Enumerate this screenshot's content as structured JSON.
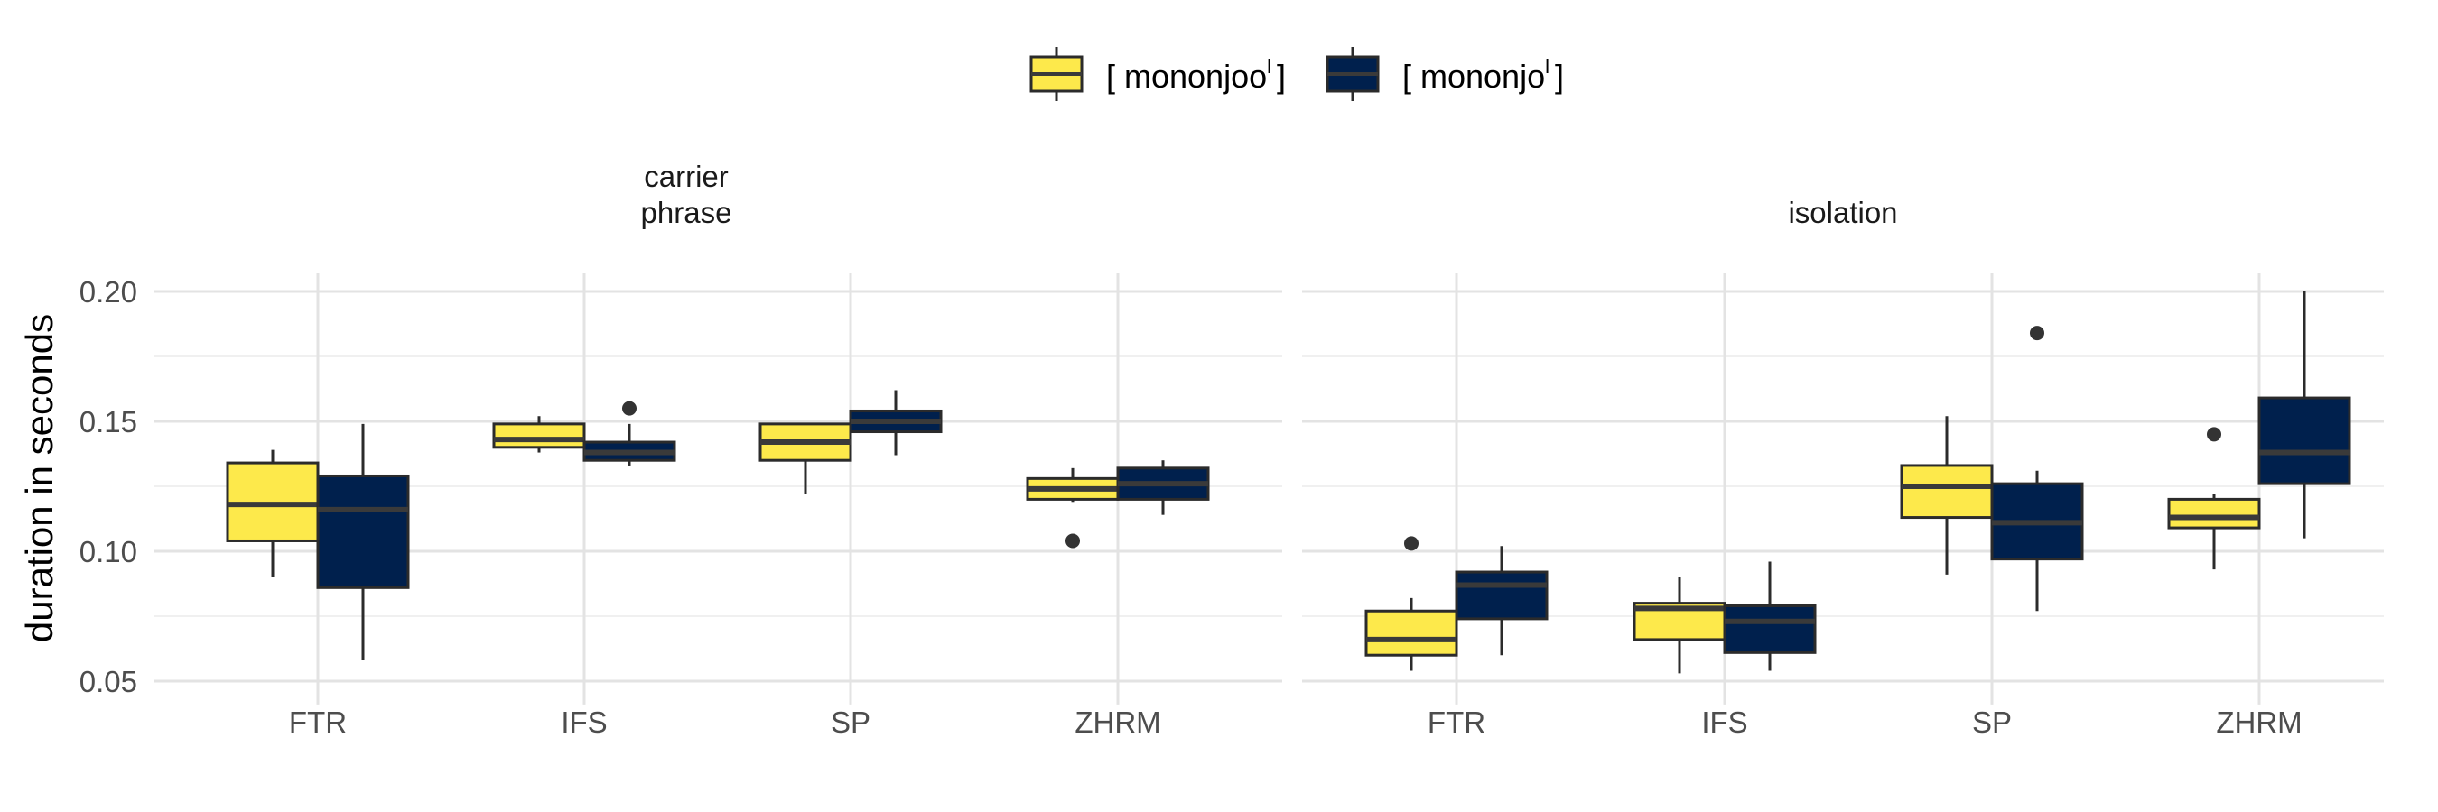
{
  "chart_data": {
    "type": "box",
    "facet_strip_labels": [
      "carrier\nphrase",
      "isolation"
    ],
    "ylabel": "duration in seconds",
    "ylim": [
      0.041,
      0.2
    ],
    "yticks": [
      0.05,
      0.1,
      0.15,
      0.2
    ],
    "ytick_labels": [
      "0.05",
      "0.10",
      "0.15",
      "0.20"
    ],
    "categories": [
      "FTR",
      "IFS",
      "SP",
      "ZHRM"
    ],
    "grid": true,
    "legend_position": "top",
    "series": [
      {
        "name": "[ mononjooˡ ]",
        "legend_base": "[ mononjoo",
        "legend_sup": "l",
        "legend_close": "]",
        "color": "#FDE94B"
      },
      {
        "name": "[ mononjoˡ ]",
        "legend_base": "[ mononjo",
        "legend_sup": "l",
        "legend_close": "]",
        "color": "#00204D"
      }
    ],
    "facets": [
      {
        "name": "carrier phrase",
        "boxes": {
          "FTR": [
            {
              "whisker_low": 0.09,
              "q1": 0.104,
              "median": 0.118,
              "q3": 0.134,
              "whisker_high": 0.139,
              "outliers": []
            },
            {
              "whisker_low": 0.058,
              "q1": 0.086,
              "median": 0.116,
              "q3": 0.129,
              "whisker_high": 0.149,
              "outliers": []
            }
          ],
          "IFS": [
            {
              "whisker_low": 0.138,
              "q1": 0.14,
              "median": 0.143,
              "q3": 0.149,
              "whisker_high": 0.152,
              "outliers": []
            },
            {
              "whisker_low": 0.133,
              "q1": 0.135,
              "median": 0.138,
              "q3": 0.142,
              "whisker_high": 0.149,
              "outliers": [
                0.155
              ]
            }
          ],
          "SP": [
            {
              "whisker_low": 0.122,
              "q1": 0.135,
              "median": 0.142,
              "q3": 0.149,
              "whisker_high": 0.149,
              "outliers": []
            },
            {
              "whisker_low": 0.137,
              "q1": 0.146,
              "median": 0.15,
              "q3": 0.154,
              "whisker_high": 0.162,
              "outliers": []
            }
          ],
          "ZHRM": [
            {
              "whisker_low": 0.119,
              "q1": 0.12,
              "median": 0.124,
              "q3": 0.128,
              "whisker_high": 0.132,
              "outliers": [
                0.104
              ]
            },
            {
              "whisker_low": 0.114,
              "q1": 0.12,
              "median": 0.126,
              "q3": 0.132,
              "whisker_high": 0.135,
              "outliers": []
            }
          ]
        }
      },
      {
        "name": "isolation",
        "boxes": {
          "FTR": [
            {
              "whisker_low": 0.054,
              "q1": 0.06,
              "median": 0.066,
              "q3": 0.077,
              "whisker_high": 0.082,
              "outliers": [
                0.103
              ]
            },
            {
              "whisker_low": 0.06,
              "q1": 0.074,
              "median": 0.087,
              "q3": 0.092,
              "whisker_high": 0.102,
              "outliers": []
            }
          ],
          "IFS": [
            {
              "whisker_low": 0.053,
              "q1": 0.066,
              "median": 0.078,
              "q3": 0.08,
              "whisker_high": 0.09,
              "outliers": []
            },
            {
              "whisker_low": 0.054,
              "q1": 0.061,
              "median": 0.073,
              "q3": 0.079,
              "whisker_high": 0.096,
              "outliers": []
            }
          ],
          "SP": [
            {
              "whisker_low": 0.091,
              "q1": 0.113,
              "median": 0.125,
              "q3": 0.133,
              "whisker_high": 0.152,
              "outliers": []
            },
            {
              "whisker_low": 0.077,
              "q1": 0.097,
              "median": 0.111,
              "q3": 0.126,
              "whisker_high": 0.131,
              "outliers": [
                0.184
              ]
            }
          ],
          "ZHRM": [
            {
              "whisker_low": 0.093,
              "q1": 0.109,
              "median": 0.113,
              "q3": 0.12,
              "whisker_high": 0.122,
              "outliers": [
                0.145
              ]
            },
            {
              "whisker_low": 0.105,
              "q1": 0.126,
              "median": 0.138,
              "q3": 0.159,
              "whisker_high": 0.2,
              "outliers": []
            }
          ]
        }
      }
    ]
  }
}
